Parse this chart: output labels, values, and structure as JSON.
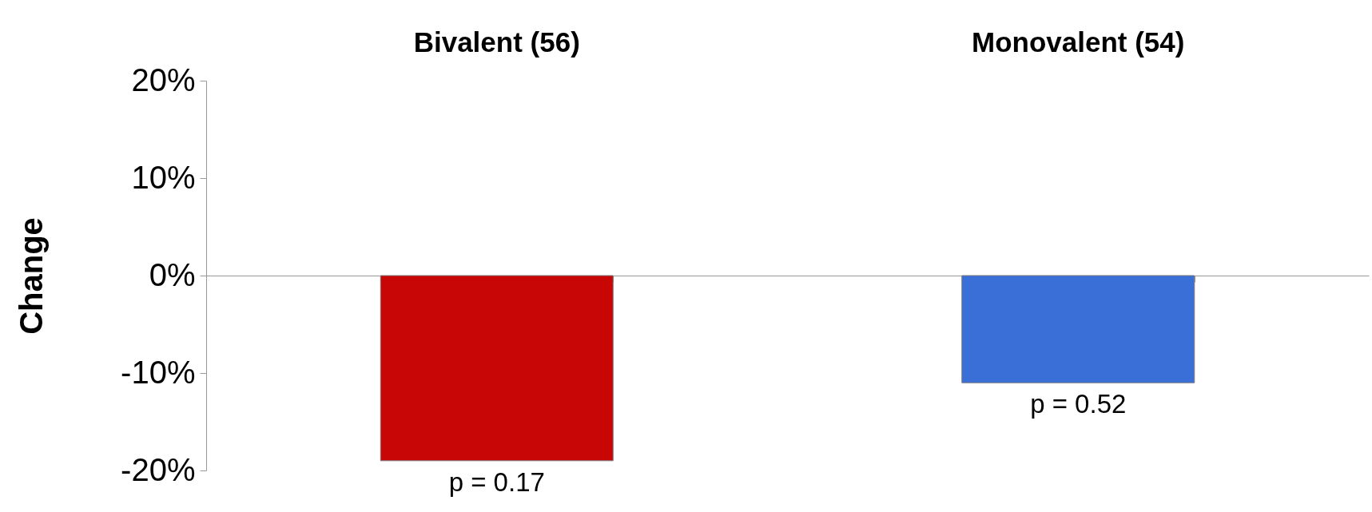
{
  "chart_data": {
    "type": "bar",
    "ylabel": "Change",
    "categories": [
      "Bivalent (56)",
      "Monovalent (54)"
    ],
    "values": [
      -19,
      -11
    ],
    "colors": [
      "#c80606",
      "#3a6fd8"
    ],
    "ylim": [
      -20,
      20
    ],
    "yticks": [
      {
        "value": -20,
        "label": "-20%"
      },
      {
        "value": -10,
        "label": "-10%"
      },
      {
        "value": 0,
        "label": "0%"
      },
      {
        "value": 10,
        "label": "10%"
      },
      {
        "value": 20,
        "label": "20%"
      }
    ],
    "annotations": [
      {
        "text": "p = 0.17",
        "x": "Bivalent (56)",
        "y": -19
      },
      {
        "text": "p = 0.52",
        "x": "Monovalent (54)",
        "y": -11
      }
    ]
  }
}
